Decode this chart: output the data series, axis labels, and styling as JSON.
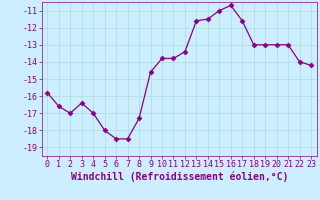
{
  "x": [
    0,
    1,
    2,
    3,
    4,
    5,
    6,
    7,
    8,
    9,
    10,
    11,
    12,
    13,
    14,
    15,
    16,
    17,
    18,
    19,
    20,
    21,
    22,
    23
  ],
  "y": [
    -15.8,
    -16.6,
    -17.0,
    -16.4,
    -17.0,
    -18.0,
    -18.5,
    -18.5,
    -17.3,
    -14.6,
    -13.8,
    -13.8,
    -13.4,
    -11.6,
    -11.5,
    -11.0,
    -10.7,
    -11.6,
    -13.0,
    -13.0,
    -13.0,
    -13.0,
    -14.0,
    -14.2
  ],
  "line_color": "#880088",
  "marker": "D",
  "marker_size": 2.5,
  "bg_color": "#cceeff",
  "grid_color": "#aadddd",
  "xlabel": "Windchill (Refroidissement éolien,°C)",
  "xlabel_fontsize": 7.0,
  "tick_fontsize": 6.0,
  "ylim": [
    -19.5,
    -10.5
  ],
  "xlim": [
    -0.5,
    23.5
  ],
  "yticks": [
    -11,
    -12,
    -13,
    -14,
    -15,
    -16,
    -17,
    -18,
    -19
  ],
  "xticks": [
    0,
    1,
    2,
    3,
    4,
    5,
    6,
    7,
    8,
    9,
    10,
    11,
    12,
    13,
    14,
    15,
    16,
    17,
    18,
    19,
    20,
    21,
    22,
    23
  ]
}
